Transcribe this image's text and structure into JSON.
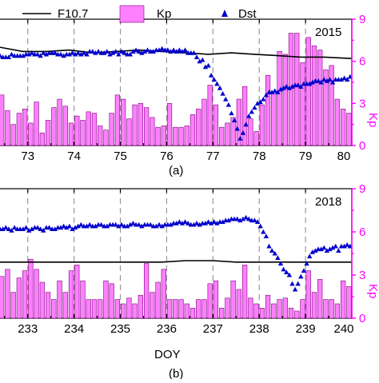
{
  "chart_data": [
    {
      "type": "bar",
      "panel_caption": "(a)",
      "year": "2015",
      "xlabel": "",
      "xlim": [
        72.4,
        80.0
      ],
      "xticks": [
        73,
        74,
        75,
        76,
        77,
        78,
        79,
        80
      ],
      "kp_ylabel": "Kp",
      "kp_ylim": [
        0,
        9
      ],
      "kp_ticks": [
        0,
        3,
        6,
        9
      ],
      "grid": "vertical dashed at integer days",
      "legend": {
        "placement": "top",
        "entries": [
          {
            "label": "F10.7",
            "marker": "line",
            "color": "#000000"
          },
          {
            "label": "Kp",
            "marker": "bar",
            "color": "#ff80ff"
          },
          {
            "label": "Dst",
            "marker": "triangle",
            "color": "#0000cc"
          }
        ]
      },
      "series": [
        {
          "name": "Kp",
          "x_start": 72.4375,
          "x_step": 0.125,
          "values": [
            3.6,
            2.5,
            1.5,
            2.3,
            2.6,
            1.6,
            3.1,
            0.9,
            1.8,
            2.7,
            3.3,
            2.8,
            1.6,
            2.1,
            1.8,
            2.4,
            2.3,
            1.4,
            1.1,
            2.3,
            3.6,
            3.3,
            1.9,
            2.9,
            3.0,
            2.7,
            2.0,
            1.3,
            1.4,
            3.0,
            1.3,
            1.3,
            1.4,
            2.2,
            2.6,
            3.3,
            4.3,
            2.9,
            1.3,
            1.6,
            2.0,
            3.3,
            4.2,
            1.9,
            1.0,
            2.9,
            5.0,
            3.7,
            6.7,
            6.5,
            8.0,
            8.0,
            5.9,
            7.7,
            7.1,
            6.8,
            5.4,
            5.7,
            3.3,
            2.6,
            2.3,
            4.5,
            2.6,
            3.2,
            5.3,
            3.5,
            4.2,
            3.6,
            5.0,
            5.3,
            4.2,
            4.6,
            4.2,
            4.3,
            3.3,
            3.9,
            4.3,
            4.6,
            2.3,
            3.3,
            4.8,
            3.5,
            4.0,
            2.9,
            3.0,
            3.7,
            4.2,
            3.5,
            3.3,
            3.5,
            2.9,
            2.9,
            2.6,
            3.2,
            3.7,
            2.8,
            2.4,
            2.6,
            3.0,
            3.3,
            3.7,
            2.8,
            3.1,
            3.0,
            2.7,
            4.0,
            4.1,
            3.7,
            3.2,
            2.3,
            2.9,
            3.4,
            3.5,
            2.8,
            3.4,
            3.6,
            3.8,
            4.1,
            3.0
          ]
        },
        {
          "name": "F10.7",
          "x": [
            72.4,
            72.9,
            73.4,
            73.9,
            74.4,
            74.9,
            75.4,
            75.9,
            76.4,
            76.9,
            77.4,
            77.9,
            78.4,
            78.9,
            79.4,
            80.0
          ],
          "kp_scaled": [
            7.0,
            6.7,
            6.7,
            6.8,
            6.6,
            6.7,
            6.8,
            6.7,
            6.6,
            6.5,
            6.6,
            6.5,
            6.4,
            6.3,
            6.3,
            6.2
          ]
        },
        {
          "name": "Dst",
          "x_start": 72.4,
          "x_step": 0.0625,
          "kp_scaled": [
            6.4,
            6.3,
            6.3,
            6.3,
            6.5,
            6.4,
            6.4,
            6.4,
            6.4,
            6.5,
            6.5,
            6.6,
            6.5,
            6.5,
            6.4,
            6.6,
            6.5,
            6.6,
            6.6,
            6.6,
            6.5,
            6.5,
            6.4,
            6.5,
            6.5,
            6.6,
            6.5,
            6.6,
            6.5,
            6.6,
            6.5,
            6.7,
            6.7,
            6.6,
            6.7,
            6.6,
            6.6,
            6.7,
            6.5,
            6.6,
            6.7,
            6.5,
            6.7,
            6.6,
            6.5,
            6.5,
            6.7,
            6.8,
            6.7,
            6.6,
            6.7,
            6.8,
            6.7,
            6.7,
            6.8,
            6.8,
            6.9,
            6.8,
            6.8,
            6.7,
            6.8,
            6.7,
            6.8,
            6.7,
            6.8,
            6.6,
            6.6,
            6.6,
            6.3,
            6.0,
            6.1,
            5.6,
            5.7,
            5.0,
            4.7,
            4.4,
            4.1,
            3.7,
            3.3,
            2.9,
            2.3,
            1.8,
            1.2,
            0.5,
            0.9,
            1.5,
            2.1,
            2.4,
            2.7,
            3.0,
            3.1,
            3.3,
            3.6,
            3.8,
            3.8,
            3.9,
            3.8,
            4.0,
            4.1,
            4.2,
            4.1,
            4.2,
            4.3,
            4.3,
            4.2,
            4.4,
            4.4,
            4.4,
            4.5,
            4.6,
            4.6,
            4.5,
            4.7,
            4.6,
            4.7,
            4.5,
            4.7,
            4.7,
            4.7,
            4.8,
            4.7,
            4.9,
            4.8,
            4.8,
            4.8,
            4.9,
            4.9,
            5.0
          ]
        }
      ]
    },
    {
      "type": "bar",
      "panel_caption": "(b)",
      "year": "2018",
      "xlabel": "DOY",
      "xlim": [
        232.4,
        240.0
      ],
      "xticks": [
        233,
        234,
        235,
        236,
        237,
        238,
        239,
        240
      ],
      "kp_ylabel": "Kp",
      "kp_ylim": [
        0,
        9
      ],
      "kp_ticks": [
        0,
        3,
        6,
        9
      ],
      "grid": "vertical dashed at integer days",
      "series": [
        {
          "name": "Kp",
          "x_start": 232.4375,
          "x_step": 0.125,
          "values": [
            2.9,
            3.4,
            1.8,
            2.8,
            3.3,
            4.1,
            3.4,
            2.5,
            1.8,
            1.3,
            2.6,
            1.8,
            3.3,
            3.7,
            2.6,
            1.3,
            1.3,
            1.3,
            2.6,
            2.4,
            1.3,
            1.0,
            1.4,
            1.0,
            1.6,
            3.8,
            1.8,
            2.5,
            3.4,
            1.3,
            1.3,
            1.3,
            1.0,
            0.7,
            1.3,
            1.3,
            2.4,
            2.6,
            0.7,
            1.4,
            2.6,
            2.0,
            3.7,
            1.4,
            1.0,
            0.7,
            1.6,
            1.0,
            1.3,
            1.4,
            0.7,
            0.5,
            1.3,
            3.3,
            1.8,
            2.7,
            1.3,
            1.3,
            1.0,
            2.6,
            2.2,
            1.3,
            2.9,
            1.9,
            3.3,
            4.0,
            4.3,
            5.0,
            4.7,
            5.2,
            4.6,
            6.1,
            6.8,
            7.1,
            7.6,
            5.5,
            3.6,
            2.7,
            4.7,
            3.6,
            3.0,
            1.6,
            2.6,
            3.1,
            3.4,
            2.5,
            2.2,
            3.0,
            3.3,
            3.6,
            4.0,
            4.2,
            4.6,
            3.9,
            4.0,
            2.8,
            4.3,
            5.2,
            4.3,
            4.8,
            4.7
          ]
        },
        {
          "name": "F10.7",
          "x": [
            232.4,
            233.0,
            234.0,
            235.0,
            235.9,
            236.4,
            237.0,
            237.5,
            238.0,
            238.6,
            239.0,
            240.0
          ],
          "kp_scaled": [
            3.9,
            3.9,
            3.9,
            3.9,
            3.9,
            4.0,
            4.0,
            3.9,
            3.9,
            3.9,
            3.9,
            3.9
          ]
        },
        {
          "name": "Dst",
          "x_start": 232.4,
          "x_step": 0.0625,
          "kp_scaled": [
            6.2,
            6.2,
            6.3,
            6.2,
            6.1,
            6.3,
            6.2,
            6.2,
            6.2,
            6.3,
            6.1,
            6.2,
            6.3,
            6.3,
            6.2,
            6.1,
            6.3,
            6.3,
            6.2,
            6.2,
            6.3,
            6.3,
            6.4,
            6.3,
            6.4,
            6.2,
            6.3,
            6.4,
            6.5,
            6.4,
            6.4,
            6.5,
            6.4,
            6.4,
            6.5,
            6.5,
            6.4,
            6.4,
            6.5,
            6.5,
            6.5,
            6.4,
            6.5,
            6.4,
            6.4,
            6.5,
            6.6,
            6.5,
            6.5,
            6.4,
            6.5,
            6.5,
            6.5,
            6.4,
            6.4,
            6.5,
            6.4,
            6.5,
            6.5,
            6.5,
            6.6,
            6.6,
            6.7,
            6.6,
            6.7,
            6.6,
            6.5,
            6.5,
            6.6,
            6.5,
            6.6,
            6.6,
            6.7,
            6.6,
            6.7,
            6.6,
            6.7,
            6.7,
            6.8,
            6.8,
            6.9,
            6.9,
            6.9,
            6.8,
            6.9,
            7.0,
            6.9,
            6.8,
            6.8,
            6.7,
            6.4,
            6.0,
            5.7,
            5.0,
            4.7,
            4.5,
            4.2,
            3.8,
            3.4,
            3.2,
            3.0,
            2.4,
            2.0,
            2.4,
            2.9,
            3.3,
            3.8,
            4.3,
            4.6,
            4.7,
            4.8,
            4.8,
            4.9,
            4.7,
            4.8,
            4.9,
            5.0,
            4.7,
            5.0,
            5.0,
            5.1,
            5.0,
            5.2,
            5.1,
            5.3,
            5.2,
            5.2
          ]
        }
      ]
    }
  ]
}
